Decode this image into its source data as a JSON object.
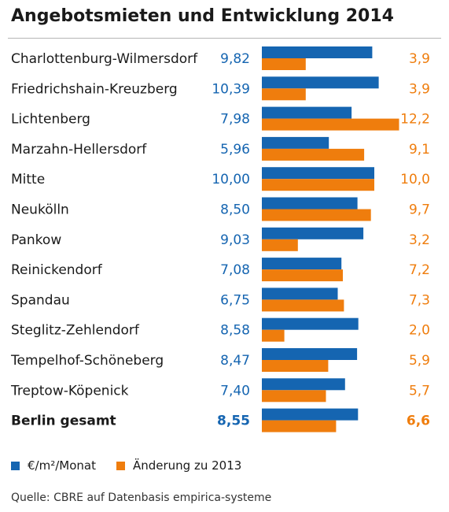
{
  "title": "Angebotsmieten und Entwicklung 2014",
  "legend": {
    "series1": "€/m²/Monat",
    "series2": "Änderung zu 2013"
  },
  "source": "Quelle: CBRE auf Datenbasis empirica-systeme",
  "colors": {
    "blue": "#1565b1",
    "orange": "#ef7d0d",
    "text": "#1a1a1a"
  },
  "chart_data": {
    "type": "bar",
    "orientation": "horizontal",
    "categories": [
      "Charlottenburg-Wilmersdorf",
      "Friedrichshain-Kreuzberg",
      "Lichtenberg",
      "Marzahn-Hellersdorf",
      "Mitte",
      "Neukölln",
      "Pankow",
      "Reinickendorf",
      "Spandau",
      "Steglitz-Zehlendorf",
      "Tempelhof-Schöneberg",
      "Treptow-Köpenick",
      "Berlin gesamt"
    ],
    "series": [
      {
        "name": "€/m²/Monat",
        "values": [
          9.82,
          10.39,
          7.98,
          5.96,
          10.0,
          8.5,
          9.03,
          7.08,
          6.75,
          8.58,
          8.47,
          7.4,
          8.55
        ],
        "labels": [
          "9,82",
          "10,39",
          "7,98",
          "5,96",
          "10,00",
          "8,50",
          "9,03",
          "7,08",
          "6,75",
          "8,58",
          "8,47",
          "7,40",
          "8,55"
        ]
      },
      {
        "name": "Änderung zu 2013",
        "values": [
          3.9,
          3.9,
          12.2,
          9.1,
          10.0,
          9.7,
          3.2,
          7.2,
          7.3,
          2.0,
          5.9,
          5.7,
          6.6
        ],
        "labels": [
          "3,9",
          "3,9",
          "12,2",
          "9,1",
          "10,0",
          "9,7",
          "3,2",
          "7,2",
          "7,3",
          "2,0",
          "5,9",
          "5,7",
          "6,6"
        ]
      }
    ],
    "bold_last_row": true,
    "grid": false,
    "legend_position": "bottom-left"
  }
}
